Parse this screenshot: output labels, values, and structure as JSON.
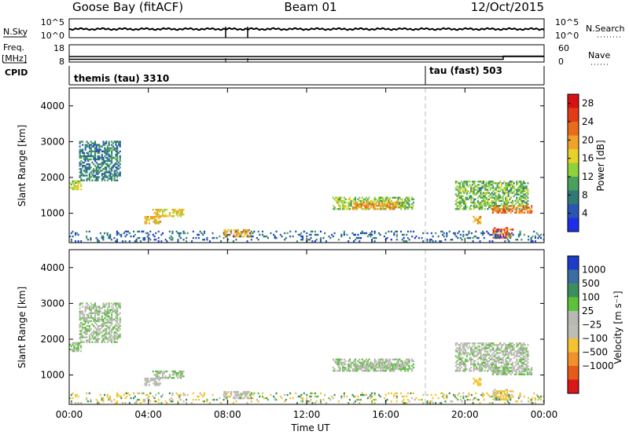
{
  "header": {
    "station": "Goose Bay (fitACF)",
    "beam": "Beam 01",
    "date": "12/Oct/2015"
  },
  "nsky": {
    "label": "N.Sky",
    "tick_top": "10^5",
    "tick_bottom": "10^0",
    "right_label": "N.Search",
    "right_tick_top": "10^5",
    "right_tick_bottom": "10^0"
  },
  "freq": {
    "label_top": "Freq.",
    "label_unit": "[MHz]",
    "tick_top": "18",
    "tick_bottom": "8",
    "right_label": "Nave",
    "right_tick_top": "60",
    "right_tick_bottom": "0"
  },
  "cpid": {
    "label": "CPID",
    "segments": [
      {
        "name": "themis (tau) 3310",
        "start_hour": 0
      },
      {
        "name": "tau (fast) 503",
        "start_hour": 18.0
      }
    ]
  },
  "axes": {
    "x_ticks": [
      "00:00",
      "04:00",
      "08:00",
      "12:00",
      "16:00",
      "20:00",
      "00:00"
    ],
    "x_label": "Time UT",
    "y_ticks": [
      "1000",
      "2000",
      "3000",
      "4000"
    ],
    "y_label": "Slant Range [km]",
    "y_range_km": [
      180,
      4500
    ],
    "x_range_hours": [
      0,
      24
    ]
  },
  "power_colorbar": {
    "label": "Power [dB]",
    "ticks": [
      "4",
      "8",
      "12",
      "16",
      "20",
      "24",
      "28"
    ],
    "colors": [
      "#1c2fe6",
      "#2b55b0",
      "#2f7a77",
      "#4aa05d",
      "#8fd13a",
      "#e7d12a",
      "#f0a32b",
      "#e86b1e",
      "#e23b18",
      "#d71212"
    ]
  },
  "velocity_colorbar": {
    "label": "Velocity [m s⁻¹]",
    "ticks": [
      "1000",
      "500",
      "100",
      "25",
      "−25",
      "−100",
      "−500",
      "−1000"
    ],
    "colors": [
      "#1c3cc8",
      "#3a6ea0",
      "#3b8f5e",
      "#5cc23a",
      "#b9b9b3",
      "#bdbdb6",
      "#f3c331",
      "#f0912b",
      "#e65a1c",
      "#d81818"
    ]
  },
  "chart_data": {
    "type": "heatmap",
    "title": "Goose Bay (fitACF) Beam 01 12/Oct/2015",
    "xlabel": "Time UT",
    "ylabel": "Slant Range [km]",
    "xlim_hours": [
      0,
      24
    ],
    "ylim_km": [
      180,
      4500
    ],
    "cpid_change_hour": 18.0,
    "echo_regions": [
      {
        "t": [
          0.0,
          0.6
        ],
        "r": [
          1650,
          1900
        ],
        "power_db": 14,
        "velocity": 20
      },
      {
        "t": [
          0.5,
          2.6
        ],
        "r": [
          1900,
          3000
        ],
        "power_db": 8,
        "velocity": 10
      },
      {
        "t": [
          4.2,
          5.8
        ],
        "r": [
          900,
          1100
        ],
        "power_db": 17,
        "velocity": 15
      },
      {
        "t": [
          3.8,
          4.6
        ],
        "r": [
          700,
          900
        ],
        "power_db": 18,
        "velocity": -20
      },
      {
        "t": [
          7.8,
          9.2
        ],
        "r": [
          330,
          550
        ],
        "power_db": 19,
        "velocity": -30
      },
      {
        "t": [
          13.3,
          17.4
        ],
        "r": [
          1100,
          1450
        ],
        "power_db": 13,
        "velocity": 10
      },
      {
        "t": [
          14.3,
          16.6
        ],
        "r": [
          1100,
          1300
        ],
        "power_db": 20,
        "velocity": 5
      },
      {
        "t": [
          19.5,
          23.2
        ],
        "r": [
          1100,
          1900
        ],
        "power_db": 12,
        "velocity": 5
      },
      {
        "t": [
          21.3,
          23.4
        ],
        "r": [
          1000,
          1200
        ],
        "power_db": 22,
        "velocity": 10
      },
      {
        "t": [
          21.4,
          22.4
        ],
        "r": [
          300,
          600
        ],
        "power_db": 24,
        "velocity": -90
      },
      {
        "t": [
          20.4,
          20.8
        ],
        "r": [
          700,
          900
        ],
        "power_db": 20,
        "velocity": -100
      },
      {
        "t": [
          0.0,
          24.0
        ],
        "r": [
          200,
          500
        ],
        "power_db": 6,
        "velocity": -40
      }
    ]
  }
}
